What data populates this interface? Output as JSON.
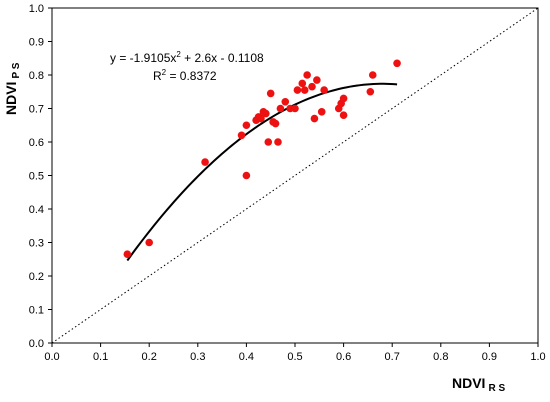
{
  "chart_data": {
    "type": "scatter",
    "xlabel": {
      "main": "NDVI",
      "sub": "R S"
    },
    "ylabel": {
      "main": "NDVI",
      "sub": "P S"
    },
    "xlim": [
      0.0,
      1.0
    ],
    "ylim": [
      0.0,
      1.0
    ],
    "x_ticks": [
      "0.0",
      "0.1",
      "0.2",
      "0.3",
      "0.4",
      "0.5",
      "0.6",
      "0.7",
      "0.8",
      "0.9",
      "1.0"
    ],
    "y_ticks": [
      "0.0",
      "0.1",
      "0.2",
      "0.3",
      "0.4",
      "0.5",
      "0.6",
      "0.7",
      "0.8",
      "0.9",
      "1.0"
    ],
    "grid": false,
    "colors": {
      "points": "#ee1111",
      "trend": "#000000",
      "reference": "#000000"
    },
    "points": [
      [
        0.155,
        0.265
      ],
      [
        0.2,
        0.3
      ],
      [
        0.315,
        0.54
      ],
      [
        0.39,
        0.62
      ],
      [
        0.4,
        0.5
      ],
      [
        0.4,
        0.65
      ],
      [
        0.42,
        0.665
      ],
      [
        0.425,
        0.675
      ],
      [
        0.43,
        0.67
      ],
      [
        0.435,
        0.69
      ],
      [
        0.44,
        0.685
      ],
      [
        0.445,
        0.6
      ],
      [
        0.45,
        0.745
      ],
      [
        0.455,
        0.66
      ],
      [
        0.46,
        0.655
      ],
      [
        0.465,
        0.6
      ],
      [
        0.47,
        0.7
      ],
      [
        0.48,
        0.72
      ],
      [
        0.49,
        0.7
      ],
      [
        0.5,
        0.7
      ],
      [
        0.505,
        0.755
      ],
      [
        0.515,
        0.775
      ],
      [
        0.52,
        0.755
      ],
      [
        0.525,
        0.8
      ],
      [
        0.535,
        0.765
      ],
      [
        0.54,
        0.67
      ],
      [
        0.545,
        0.785
      ],
      [
        0.555,
        0.69
      ],
      [
        0.56,
        0.755
      ],
      [
        0.59,
        0.7
      ],
      [
        0.595,
        0.715
      ],
      [
        0.6,
        0.73
      ],
      [
        0.6,
        0.68
      ],
      [
        0.655,
        0.75
      ],
      [
        0.66,
        0.8
      ],
      [
        0.71,
        0.835
      ]
    ],
    "trendline": {
      "type": "polynomial",
      "coefficients": {
        "a": -1.9105,
        "b": 2.6,
        "c": -0.1108
      },
      "x_range": [
        0.155,
        0.71
      ],
      "equation_label": {
        "main": "y = -1.9105x",
        "exp": "2",
        "tail": " + 2.6x - 0.1108"
      },
      "r2_label": {
        "main": "R",
        "exp": "2",
        "tail": " = 0.8372"
      }
    },
    "reference_line": {
      "name": "1:1",
      "style": "dotted",
      "from": [
        0.0,
        0.0
      ],
      "to": [
        1.0,
        1.0
      ]
    }
  }
}
